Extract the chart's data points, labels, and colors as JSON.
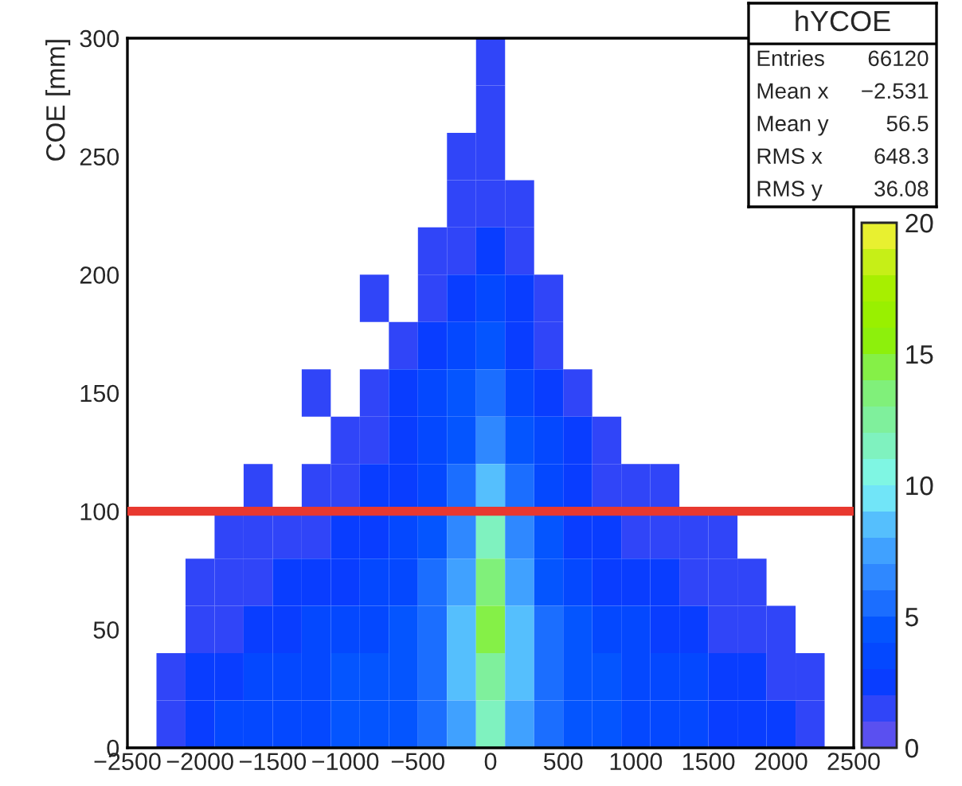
{
  "chart_data": {
    "type": "heatmap",
    "title": "hYCOE",
    "ylabel": "COE [mm]",
    "x": [
      -2400,
      -2200,
      -2000,
      -1800,
      -1600,
      -1400,
      -1200,
      -1000,
      -800,
      -600,
      -400,
      -200,
      0,
      200,
      400,
      600,
      800,
      1000,
      1200,
      1400,
      1600,
      1800,
      2000,
      2200,
      2400
    ],
    "y": [
      290,
      270,
      250,
      230,
      210,
      190,
      170,
      150,
      130,
      110,
      90,
      70,
      50,
      30,
      10
    ],
    "cells": [
      [
        null,
        null,
        null,
        null,
        null,
        null,
        null,
        null,
        null,
        null,
        null,
        null,
        1,
        null,
        null,
        null,
        null,
        null,
        null,
        null,
        null,
        null,
        null,
        null,
        null
      ],
      [
        null,
        null,
        null,
        null,
        null,
        null,
        null,
        null,
        null,
        null,
        null,
        null,
        1,
        null,
        null,
        null,
        null,
        null,
        null,
        null,
        null,
        null,
        null,
        null,
        null
      ],
      [
        null,
        null,
        null,
        null,
        null,
        null,
        null,
        null,
        null,
        null,
        null,
        1,
        1,
        null,
        null,
        null,
        null,
        null,
        null,
        null,
        null,
        null,
        null,
        null,
        null
      ],
      [
        null,
        null,
        null,
        null,
        null,
        null,
        null,
        null,
        null,
        null,
        null,
        1,
        1,
        1,
        null,
        null,
        null,
        null,
        null,
        null,
        null,
        null,
        null,
        null,
        null
      ],
      [
        null,
        null,
        null,
        null,
        null,
        null,
        null,
        null,
        null,
        null,
        1,
        1,
        2,
        1,
        null,
        null,
        null,
        null,
        null,
        null,
        null,
        null,
        null,
        null,
        null
      ],
      [
        null,
        null,
        null,
        null,
        null,
        null,
        null,
        null,
        1,
        null,
        1,
        2,
        3,
        2,
        1,
        null,
        null,
        null,
        null,
        null,
        null,
        null,
        null,
        null,
        null
      ],
      [
        null,
        null,
        null,
        null,
        null,
        null,
        null,
        null,
        null,
        1,
        2,
        3,
        4,
        2,
        1,
        null,
        null,
        null,
        null,
        null,
        null,
        null,
        null,
        null,
        null
      ],
      [
        null,
        null,
        null,
        null,
        null,
        null,
        1,
        null,
        1,
        2,
        3,
        4,
        5,
        3,
        2,
        1,
        null,
        null,
        null,
        null,
        null,
        null,
        null,
        null,
        null
      ],
      [
        null,
        null,
        null,
        null,
        null,
        null,
        null,
        1,
        1,
        2,
        3,
        4,
        6,
        4,
        3,
        2,
        1,
        null,
        null,
        null,
        null,
        null,
        null,
        null,
        null
      ],
      [
        null,
        null,
        null,
        null,
        1,
        null,
        1,
        1,
        2,
        2,
        3,
        5,
        8,
        5,
        3,
        2,
        1,
        1,
        1,
        null,
        null,
        null,
        null,
        null,
        null
      ],
      [
        null,
        null,
        null,
        1,
        1,
        1,
        1,
        2,
        2,
        3,
        4,
        6,
        11,
        6,
        4,
        2,
        2,
        1,
        1,
        1,
        1,
        null,
        null,
        null,
        null
      ],
      [
        null,
        null,
        1,
        1,
        1,
        2,
        2,
        2,
        3,
        3,
        5,
        7,
        13,
        7,
        4,
        3,
        2,
        2,
        2,
        1,
        1,
        1,
        null,
        null,
        null
      ],
      [
        null,
        null,
        1,
        1,
        2,
        2,
        3,
        3,
        3,
        4,
        5,
        8,
        14,
        8,
        5,
        4,
        3,
        3,
        2,
        2,
        1,
        1,
        1,
        null,
        null
      ],
      [
        null,
        1,
        2,
        2,
        3,
        3,
        3,
        4,
        4,
        4,
        5,
        8,
        12,
        8,
        5,
        4,
        4,
        3,
        3,
        3,
        2,
        2,
        1,
        1,
        null
      ],
      [
        null,
        1,
        2,
        3,
        3,
        3,
        3,
        4,
        4,
        4,
        5,
        7,
        11,
        7,
        5,
        4,
        4,
        3,
        3,
        3,
        2,
        2,
        2,
        1,
        null
      ]
    ],
    "colors": [
      "#5a50f0",
      "#0a3cff",
      "#0050ff",
      "#2a80ff",
      "#4ab0ff",
      "#7ff8f5",
      "#7ff0b0",
      "#80f070",
      "#8ef000",
      "#a8ef00",
      "#e8f030"
    ],
    "xlim": [
      -2500,
      2500
    ],
    "xticks": [
      -2500,
      -2000,
      -1500,
      -1000,
      -500,
      0,
      500,
      1000,
      1500,
      2000,
      2500
    ],
    "ylim": [
      0,
      300
    ],
    "yticks": [
      0,
      50,
      100,
      150,
      200,
      250,
      300
    ],
    "clim": [
      0,
      20
    ],
    "cticks": [
      0,
      5,
      10,
      15,
      20
    ],
    "ref_lines": [
      {
        "axis": "y",
        "value": 100,
        "color": "#e8382f"
      }
    ],
    "annotations": [
      "Entries",
      "66120",
      "Mean x",
      "−2.531",
      "Mean y",
      "56.5",
      "RMS x",
      "648.3",
      "RMS y",
      "36.08"
    ],
    "grid": false
  }
}
